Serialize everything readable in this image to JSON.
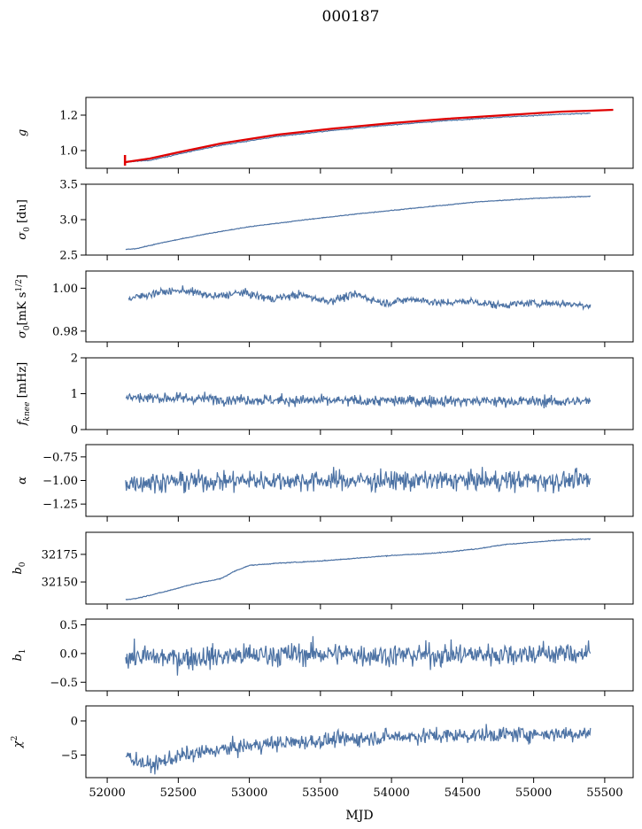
{
  "title": "000187",
  "colors": {
    "series": "#4c72a4",
    "fit": "#e00000"
  },
  "chart_data": {
    "type": "line",
    "shared_x": {
      "label": "MJD",
      "range": [
        51850,
        55700
      ],
      "ticks": [
        52000,
        52500,
        53000,
        53500,
        54000,
        54500,
        55000,
        55500
      ]
    },
    "x_extent": [
      52125,
      55400
    ],
    "panels": [
      {
        "ylabel_html": "g",
        "ylim": [
          0.9,
          1.3
        ],
        "yticks": [
          1.0,
          1.2
        ],
        "ytick_labels": [
          "1.0",
          "1.2"
        ],
        "series": [
          {
            "color": "blue",
            "x": [
              52130,
              52300,
              52500,
              52800,
              53200,
              53600,
              54000,
              54400,
              54800,
              55200,
              55400
            ],
            "y": [
              0.935,
              0.945,
              0.98,
              1.03,
              1.08,
              1.115,
              1.145,
              1.17,
              1.19,
              1.205,
              1.21
            ]
          },
          {
            "color": "red",
            "x": [
              52130,
              52300,
              52500,
              52800,
              53200,
              53600,
              54000,
              54400,
              54800,
              55200,
              55400,
              55560
            ],
            "y": [
              0.935,
              0.955,
              0.99,
              1.04,
              1.09,
              1.125,
              1.155,
              1.18,
              1.2,
              1.22,
              1.225,
              1.23
            ],
            "width": 2.2
          }
        ],
        "errorbar": {
          "x": 52125,
          "y": 0.945,
          "yerr": 0.03
        }
      },
      {
        "ylabel_html": "σ0 [du]",
        "ylim": [
          2.5,
          3.5
        ],
        "yticks": [
          2.5,
          3.0,
          3.5
        ],
        "ytick_labels": [
          "2.5",
          "3.0",
          "3.5"
        ],
        "series": [
          {
            "color": "blue",
            "x": [
              52130,
              52200,
              52400,
              52700,
              53000,
              53400,
              53800,
              54200,
              54600,
              55000,
              55400
            ],
            "y": [
              2.58,
              2.59,
              2.68,
              2.8,
              2.9,
              3.0,
              3.09,
              3.17,
              3.25,
              3.3,
              3.33
            ]
          }
        ]
      },
      {
        "ylabel_html": "σ0[mK s^1/2]",
        "ylim": [
          0.975,
          1.008
        ],
        "yticks": [
          0.98,
          1.0
        ],
        "ytick_labels": [
          "0.98",
          "1.00"
        ],
        "series": [
          {
            "color": "blue",
            "x": [
              52150,
              52350,
              52550,
              52750,
              52950,
              53150,
              53350,
              53550,
              53750,
              53950,
              54150,
              54350,
              54550,
              54750,
              54950,
              55150,
              55400
            ],
            "y": [
              0.995,
              0.998,
              0.999,
              0.996,
              0.998,
              0.995,
              0.997,
              0.994,
              0.997,
              0.993,
              0.995,
              0.993,
              0.994,
              0.992,
              0.993,
              0.993,
              0.992
            ]
          }
        ]
      },
      {
        "ylabel_html": "f_knee [mHz]",
        "ylim": [
          0,
          2
        ],
        "yticks": [
          0,
          1,
          2
        ],
        "ytick_labels": [
          "0",
          "1",
          "2"
        ],
        "series": [
          {
            "color": "blue",
            "x": [
              52130,
              52400,
              52800,
              53200,
              53600,
              54000,
              54400,
              54800,
              55200,
              55400
            ],
            "y": [
              0.9,
              0.88,
              0.85,
              0.82,
              0.8,
              0.8,
              0.8,
              0.79,
              0.78,
              0.78
            ]
          }
        ]
      },
      {
        "ylabel_html": "α",
        "ylim": [
          -1.38,
          -0.62
        ],
        "yticks": [
          -1.25,
          -1.0,
          -0.75
        ],
        "ytick_labels": [
          "−1.25",
          "−1.00",
          "−0.75"
        ],
        "series": [
          {
            "color": "blue",
            "x": [
              52130,
              52500,
              53000,
              53500,
              54000,
              54500,
              55000,
              55400
            ],
            "y": [
              -1.02,
              -1.01,
              -1.0,
              -1.0,
              -1.0,
              -1.0,
              -1.0,
              -1.0
            ]
          }
        ]
      },
      {
        "ylabel_html": "b0",
        "ylim": [
          32130,
          32195
        ],
        "yticks": [
          32150,
          32175
        ],
        "ytick_labels": [
          "32150",
          "32175"
        ],
        "series": [
          {
            "color": "blue",
            "x": [
              52130,
              52200,
              52400,
              52600,
              52800,
              52900,
              53000,
              53200,
              53500,
              53800,
              54000,
              54300,
              54600,
              54800,
              55000,
              55200,
              55400
            ],
            "y": [
              32134,
              32135,
              32141,
              32148,
              32153,
              32160,
              32165,
              32167,
              32169,
              32172,
              32174,
              32176,
              32180,
              32184,
              32186,
              32188,
              32189
            ]
          }
        ]
      },
      {
        "ylabel_html": "b1",
        "ylim": [
          -0.65,
          0.6
        ],
        "yticks": [
          -0.5,
          0.0,
          0.5
        ],
        "ytick_labels": [
          "−0.5",
          "0.0",
          "0.5"
        ],
        "series": [
          {
            "color": "blue",
            "x": [
              52130,
              52500,
              53000,
              53500,
              54000,
              54500,
              55000,
              55400
            ],
            "y": [
              -0.05,
              -0.08,
              -0.03,
              0.0,
              -0.03,
              -0.02,
              0.0,
              0.0
            ]
          }
        ]
      },
      {
        "ylabel_html": "χ2",
        "ylim": [
          -8.3,
          2.2
        ],
        "yticks": [
          -5,
          0
        ],
        "ytick_labels": [
          "−5",
          "0"
        ],
        "series": [
          {
            "color": "blue",
            "x": [
              52130,
              52300,
              52500,
              52800,
              53100,
              53500,
              54000,
              54500,
              55000,
              55400
            ],
            "y": [
              -5.0,
              -6.6,
              -5.2,
              -4.2,
              -3.4,
              -2.9,
              -2.3,
              -2.1,
              -1.9,
              -1.8
            ]
          }
        ]
      }
    ]
  }
}
